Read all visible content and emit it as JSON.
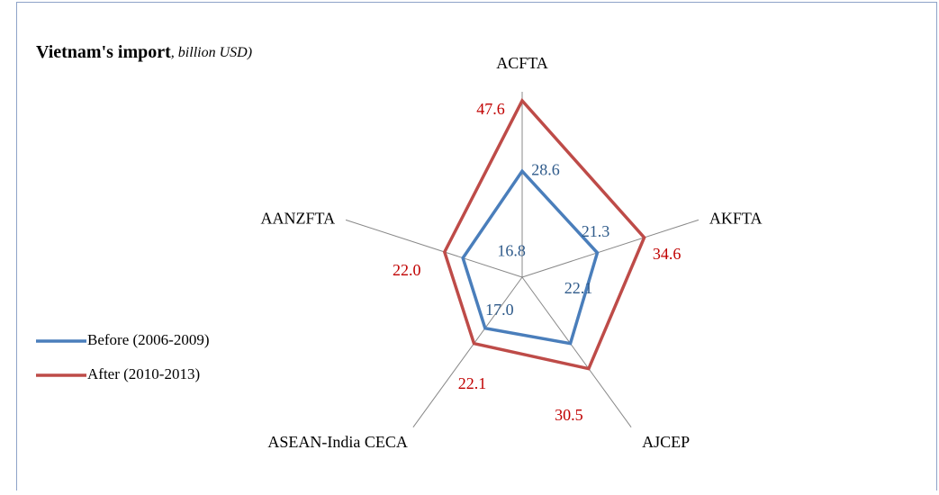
{
  "chart_data": {
    "type": "radar",
    "title": "Vietnam's import",
    "subtitle": ", billion USD)",
    "categories": [
      "ACFTA",
      "AKFTA",
      "AJCEP",
      "ASEAN-India CECA",
      "AANZFTA"
    ],
    "series": [
      {
        "name": "Before (2006-2009)",
        "color": "#4a7ebb",
        "values": [
          28.6,
          21.3,
          22.1,
          17.0,
          16.8
        ],
        "value_labels": [
          "28.6",
          "21.3",
          "22.1",
          "17.0",
          "16.8"
        ],
        "label_color": "#2e5a8a"
      },
      {
        "name": "After (2010-2013)",
        "color": "#be4b48",
        "values": [
          47.6,
          34.6,
          30.5,
          22.1,
          22.0
        ],
        "value_labels": [
          "47.6",
          "34.6",
          "30.5",
          "22.1",
          "22.0"
        ],
        "label_color": "#c00000"
      }
    ],
    "ylim": [
      0,
      50
    ],
    "legend": "left"
  }
}
